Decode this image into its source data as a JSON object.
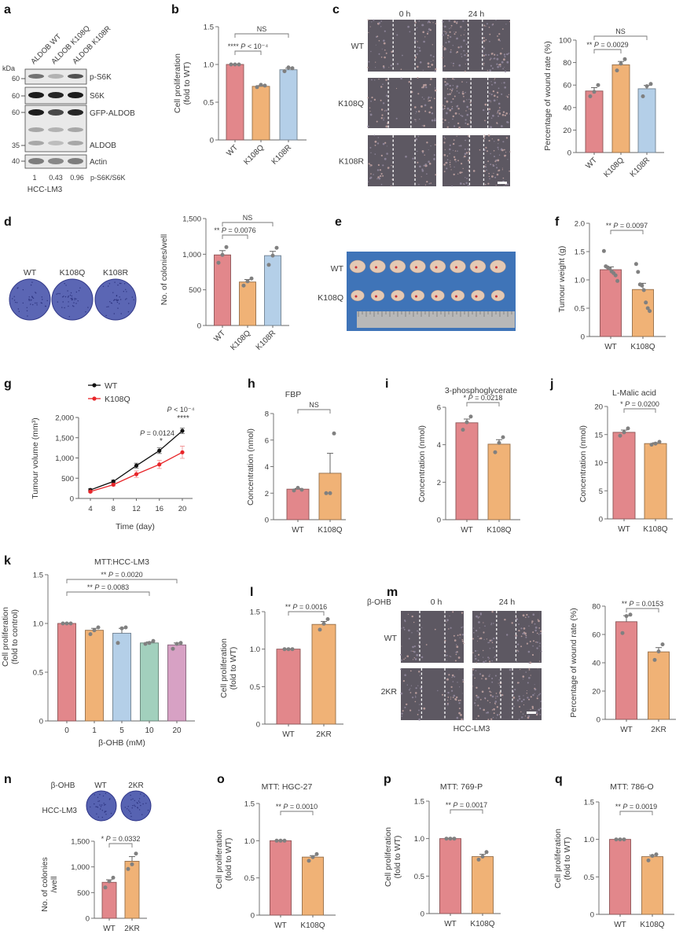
{
  "panel_labels": [
    "a",
    "b",
    "c",
    "d",
    "e",
    "f",
    "g",
    "h",
    "i",
    "j",
    "k",
    "l",
    "m",
    "n",
    "o",
    "p",
    "q"
  ],
  "colors": {
    "WT": "#e2878b",
    "K108Q": "#f0b276",
    "K108R": "#b4cfe8",
    "2KR": "#f0b276",
    "dose_10": "#a2d0bd",
    "dose_20": "#d7a1c4",
    "line_WT": "#111111",
    "line_K108Q": "#e8262a",
    "point": "#808080"
  },
  "blot": {
    "lanes": [
      "ALDOB WT",
      "ALDOB K108Q",
      "ALDOB K108R"
    ],
    "kda_label": "kDa",
    "markers": [
      "60",
      "60",
      "60",
      "35",
      "40"
    ],
    "bands": [
      "p-S6K",
      "S6K",
      "GFP-ALDOB",
      "ALDOB",
      "Actin"
    ],
    "ratio_values": [
      "1",
      "0.43",
      "0.96"
    ],
    "ratio_label": "p-S6K/S6K",
    "cell_line": "HCC-LM3"
  },
  "wound_c": {
    "time_labels": [
      "0 h",
      "24 h"
    ],
    "rows": [
      "WT",
      "K108Q",
      "K108R"
    ]
  },
  "colony_d": {
    "labels": [
      "WT",
      "K108Q",
      "K108R"
    ]
  },
  "tumour_e": {
    "rows": [
      "WT",
      "K108Q"
    ]
  },
  "wound_m": {
    "treatment": "β-OHB",
    "time_labels": [
      "0 h",
      "24 h"
    ],
    "rows": [
      "WT",
      "2KR"
    ],
    "cell_line": "HCC-LM3"
  },
  "colony_n": {
    "treatment": "β-OHB",
    "cols": [
      "WT",
      "2KR"
    ],
    "cell_line": "HCC-LM3"
  },
  "chart_data": [
    {
      "id": "b",
      "type": "bar",
      "title": "",
      "ylabel": [
        "Cell proliferation",
        "(fold to WT)"
      ],
      "ylim": [
        0,
        1.5
      ],
      "yticks": [
        0,
        0.5,
        1.0,
        1.5
      ],
      "ytick_labels": [
        "0",
        "0.5",
        "1.0",
        "1.5"
      ],
      "categories": [
        "WT",
        "K108Q",
        "K108R"
      ],
      "values": [
        1.0,
        0.71,
        0.93
      ],
      "errors": [
        0.005,
        0.01,
        0.02
      ],
      "points": [
        [
          1.0,
          1.0,
          1.0
        ],
        [
          0.7,
          0.73,
          0.72
        ],
        [
          0.91,
          0.96,
          0.95
        ]
      ],
      "colors": [
        "WT",
        "K108Q",
        "K108R"
      ],
      "comparisons": [
        {
          "groups": [
            0,
            2
          ],
          "label": "NS"
        },
        {
          "groups": [
            0,
            1
          ],
          "label": "**** P < 10⁻⁴"
        }
      ]
    },
    {
      "id": "c",
      "type": "bar",
      "title": "",
      "ylabel": [
        "Percentage of wound rate (%)"
      ],
      "ylim": [
        0,
        100
      ],
      "yticks": [
        0,
        20,
        40,
        60,
        80,
        100
      ],
      "ytick_labels": [
        "0",
        "20",
        "40",
        "60",
        "80",
        "100"
      ],
      "categories": [
        "WT",
        "K108Q",
        "K108R"
      ],
      "values": [
        54.7,
        78,
        56.7
      ],
      "errors": [
        3,
        3,
        3
      ],
      "points": [
        [
          50,
          54,
          60
        ],
        [
          73,
          79,
          83
        ],
        [
          50,
          59,
          61
        ]
      ],
      "colors": [
        "WT",
        "K108Q",
        "K108R"
      ],
      "comparisons": [
        {
          "groups": [
            0,
            2
          ],
          "label": "NS"
        },
        {
          "groups": [
            0,
            1
          ],
          "label": "** P = 0.0029"
        }
      ]
    },
    {
      "id": "d",
      "type": "bar",
      "title": "",
      "ylabel": [
        "No. of colonies/well"
      ],
      "ylim": [
        0,
        1500
      ],
      "yticks": [
        0,
        500,
        1000,
        1500
      ],
      "ytick_labels": [
        "0",
        "500",
        "1,000",
        "1,500"
      ],
      "categories": [
        "WT",
        "K108Q",
        "K108R"
      ],
      "values": [
        990,
        610,
        980
      ],
      "errors": [
        60,
        35,
        60
      ],
      "points": [
        [
          880,
          990,
          1100
        ],
        [
          560,
          620,
          660
        ],
        [
          850,
          980,
          1090
        ]
      ],
      "colors": [
        "WT",
        "K108Q",
        "K108R"
      ],
      "comparisons": [
        {
          "groups": [
            0,
            2
          ],
          "label": "NS"
        },
        {
          "groups": [
            0,
            1
          ],
          "label": "** P = 0.0076"
        }
      ]
    },
    {
      "id": "f",
      "type": "bar",
      "title": "",
      "ylabel": [
        "Tumour weight (g)"
      ],
      "ylim": [
        0,
        2.0
      ],
      "yticks": [
        0,
        0.5,
        1.0,
        1.5,
        2.0
      ],
      "ytick_labels": [
        "0",
        "0.5",
        "1.0",
        "1.5",
        "2.0"
      ],
      "categories": [
        "WT",
        "K108Q"
      ],
      "values": [
        1.18,
        0.83
      ],
      "errors": [
        0.05,
        0.11
      ],
      "points": [
        [
          1.51,
          1.24,
          1.22,
          1.2,
          1.15,
          1.12,
          1.08,
          0.98
        ],
        [
          1.28,
          1.14,
          0.92,
          0.9,
          0.82,
          0.6,
          0.5,
          0.45
        ]
      ],
      "colors": [
        "WT",
        "K108Q"
      ],
      "comparisons": [
        {
          "groups": [
            0,
            1
          ],
          "label": "** P = 0.0097"
        }
      ]
    },
    {
      "id": "g",
      "type": "line",
      "title": "",
      "xlabel": "Time (day)",
      "ylabel": [
        "Tumour volume (mm³)"
      ],
      "ylim": [
        0,
        2000
      ],
      "xlim": [
        4,
        20
      ],
      "x": [
        4,
        8,
        12,
        16,
        20
      ],
      "xtick_labels": [
        "4",
        "8",
        "12",
        "16",
        "20"
      ],
      "yticks": [
        0,
        500,
        1000,
        1500,
        2000
      ],
      "ytick_labels": [
        "0",
        "500",
        "1,000",
        "1,500",
        "2,000"
      ],
      "series": [
        {
          "name": "WT",
          "values": [
            210,
            420,
            810,
            1180,
            1670
          ],
          "errors": [
            30,
            30,
            60,
            70,
            70
          ],
          "color": "line_WT"
        },
        {
          "name": "K108Q",
          "values": [
            170,
            340,
            600,
            840,
            1140
          ],
          "errors": [
            25,
            30,
            80,
            100,
            150
          ],
          "color": "line_K108Q"
        }
      ],
      "legend": "top-left",
      "annotations": [
        {
          "x": 16,
          "label": "P = 0.0124",
          "stars": "*"
        },
        {
          "x": 20,
          "label": "P < 10⁻⁴",
          "stars": "****"
        }
      ]
    },
    {
      "id": "h",
      "type": "bar",
      "title": "FBP",
      "ylabel": [
        "Concentration (nmol)"
      ],
      "ylim": [
        0,
        8
      ],
      "yticks": [
        0,
        2,
        4,
        6,
        8
      ],
      "ytick_labels": [
        "0",
        "2",
        "4",
        "6",
        "8"
      ],
      "categories": [
        "WT",
        "K108Q"
      ],
      "values": [
        2.3,
        3.5
      ],
      "errors": [
        0.05,
        1.5
      ],
      "points": [
        [
          2.2,
          2.4,
          2.25
        ],
        [
          2.0,
          2.0,
          6.5
        ]
      ],
      "colors": [
        "WT",
        "K108Q"
      ],
      "comparisons": [
        {
          "groups": [
            0,
            1
          ],
          "label": "NS"
        }
      ]
    },
    {
      "id": "i",
      "type": "bar",
      "title": "3-phosphoglycerate",
      "ylabel": [
        "Concentration (nmol)"
      ],
      "ylim": [
        0,
        6
      ],
      "yticks": [
        0,
        2,
        4,
        6
      ],
      "ytick_labels": [
        "0",
        "2",
        "4",
        "6"
      ],
      "categories": [
        "WT",
        "K108Q"
      ],
      "values": [
        5.17,
        4.03
      ],
      "errors": [
        0.2,
        0.24
      ],
      "points": [
        [
          4.8,
          5.2,
          5.5
        ],
        [
          3.6,
          4.1,
          4.4
        ]
      ],
      "colors": [
        "WT",
        "K108Q"
      ],
      "comparisons": [
        {
          "groups": [
            0,
            1
          ],
          "label": "* P = 0.0218"
        }
      ]
    },
    {
      "id": "j",
      "type": "bar",
      "title": "L-Malic acid",
      "ylabel": [
        "Concentration (nmol)"
      ],
      "ylim": [
        0,
        20
      ],
      "yticks": [
        0,
        5,
        10,
        15,
        20
      ],
      "ytick_labels": [
        "0",
        "5",
        "10",
        "15",
        "20"
      ],
      "categories": [
        "WT",
        "K108Q"
      ],
      "values": [
        15.4,
        13.4
      ],
      "errors": [
        0.4,
        0.15
      ],
      "points": [
        [
          14.8,
          15.4,
          16.1
        ],
        [
          13.2,
          13.4,
          13.7
        ]
      ],
      "colors": [
        "WT",
        "K108Q"
      ],
      "comparisons": [
        {
          "groups": [
            0,
            1
          ],
          "label": "* P = 0.0200"
        }
      ]
    },
    {
      "id": "k",
      "type": "bar",
      "title": "MTT:HCC-LM3",
      "xlabel": "β-OHB (mM)",
      "ylabel": [
        "Cell proliferation",
        "(fold to control)"
      ],
      "ylim": [
        0,
        1.5
      ],
      "yticks": [
        0,
        0.5,
        1.0,
        1.5
      ],
      "ytick_labels": [
        "0",
        "0.5",
        "1.0",
        "1.5"
      ],
      "categories": [
        "0",
        "1",
        "5",
        "10",
        "20"
      ],
      "values": [
        1.0,
        0.93,
        0.9,
        0.8,
        0.78
      ],
      "errors": [
        0.005,
        0.02,
        0.05,
        0.01,
        0.02
      ],
      "points": [
        [
          1,
          1,
          1
        ],
        [
          0.89,
          0.93,
          0.96
        ],
        [
          0.8,
          0.95,
          0.96
        ],
        [
          0.79,
          0.8,
          0.82
        ],
        [
          0.74,
          0.79,
          0.8
        ]
      ],
      "colors": [
        "WT",
        "K108Q",
        "K108R",
        "dose_10",
        "dose_20"
      ],
      "comparisons": [
        {
          "groups": [
            0,
            4
          ],
          "label": "** P = 0.0020"
        },
        {
          "groups": [
            0,
            3
          ],
          "label": "** P = 0.0083"
        }
      ]
    },
    {
      "id": "l",
      "type": "bar",
      "title": "",
      "ylabel": [
        "Cell proliferation",
        "(fold to WT)"
      ],
      "ylim": [
        0,
        1.5
      ],
      "yticks": [
        0,
        0.5,
        1.0,
        1.5
      ],
      "ytick_labels": [
        "0",
        "0.5",
        "1.0",
        "1.5"
      ],
      "categories": [
        "WT",
        "2KR"
      ],
      "values": [
        1.0,
        1.33
      ],
      "errors": [
        0.005,
        0.04
      ],
      "points": [
        [
          1,
          1,
          1
        ],
        [
          1.26,
          1.34,
          1.4
        ]
      ],
      "colors": [
        "WT",
        "2KR"
      ],
      "comparisons": [
        {
          "groups": [
            0,
            1
          ],
          "label": "** P = 0.0016"
        }
      ]
    },
    {
      "id": "m",
      "type": "bar",
      "title": "",
      "ylabel": [
        "Percentage of wound rate (%)"
      ],
      "ylim": [
        0,
        80
      ],
      "yticks": [
        0,
        20,
        40,
        60,
        80
      ],
      "ytick_labels": [
        "0",
        "20",
        "40",
        "60",
        "80"
      ],
      "categories": [
        "WT",
        "2KR"
      ],
      "values": [
        69,
        47.7
      ],
      "errors": [
        4.3,
        3
      ],
      "points": [
        [
          61,
          73,
          74
        ],
        [
          42,
          48,
          53
        ]
      ],
      "colors": [
        "WT",
        "2KR"
      ],
      "comparisons": [
        {
          "groups": [
            0,
            1
          ],
          "label": "** P = 0.0153"
        }
      ]
    },
    {
      "id": "n",
      "type": "bar",
      "title": "",
      "ylabel": [
        "No. of colonies",
        "/well"
      ],
      "ylim": [
        0,
        1500
      ],
      "yticks": [
        0,
        500,
        1000,
        1500
      ],
      "ytick_labels": [
        "0",
        "500",
        "1,000",
        "1,500"
      ],
      "categories": [
        "WT",
        "2KR"
      ],
      "values": [
        700,
        1110
      ],
      "errors": [
        50,
        90
      ],
      "points": [
        [
          600,
          720,
          790
        ],
        [
          960,
          1050,
          1260
        ]
      ],
      "colors": [
        "WT",
        "2KR"
      ],
      "comparisons": [
        {
          "groups": [
            0,
            1
          ],
          "label": "* P = 0.0332"
        }
      ]
    },
    {
      "id": "o",
      "type": "bar",
      "title": "MTT: HGC-27",
      "ylabel": [
        "Cell proliferation",
        "(fold to WT)"
      ],
      "ylim": [
        0,
        1.5
      ],
      "yticks": [
        0,
        0.5,
        1.0,
        1.5
      ],
      "ytick_labels": [
        "0",
        "0.5",
        "1.0",
        "1.5"
      ],
      "categories": [
        "WT",
        "K108Q"
      ],
      "values": [
        1.0,
        0.78
      ],
      "errors": [
        0.005,
        0.02
      ],
      "points": [
        [
          1,
          1,
          1
        ],
        [
          0.73,
          0.78,
          0.82
        ]
      ],
      "colors": [
        "WT",
        "K108Q"
      ],
      "comparisons": [
        {
          "groups": [
            0,
            1
          ],
          "label": "** P = 0.0010"
        }
      ]
    },
    {
      "id": "p",
      "type": "bar",
      "title": "MTT: 769-P",
      "ylabel": [
        "Cell proliferation",
        "(fold to WT)"
      ],
      "ylim": [
        0,
        1.5
      ],
      "yticks": [
        0,
        0.5,
        1.0,
        1.5
      ],
      "ytick_labels": [
        "0",
        "0.5",
        "1.0",
        "1.5"
      ],
      "categories": [
        "WT",
        "K108Q"
      ],
      "values": [
        1.0,
        0.76
      ],
      "errors": [
        0.005,
        0.03
      ],
      "points": [
        [
          1,
          1,
          1
        ],
        [
          0.72,
          0.76,
          0.82
        ]
      ],
      "colors": [
        "WT",
        "K108Q"
      ],
      "comparisons": [
        {
          "groups": [
            0,
            1
          ],
          "label": "** P = 0.0017"
        }
      ]
    },
    {
      "id": "q",
      "type": "bar",
      "title": "MTT: 786-O",
      "ylabel": [
        "Cell proliferation",
        "(fold to WT)"
      ],
      "ylim": [
        0,
        1.5
      ],
      "yticks": [
        0,
        0.5,
        1.0,
        1.5
      ],
      "ytick_labels": [
        "0",
        "0.5",
        "1.0",
        "1.5"
      ],
      "categories": [
        "WT",
        "K108Q"
      ],
      "values": [
        1.0,
        0.77
      ],
      "errors": [
        0.005,
        0.02
      ],
      "points": [
        [
          1,
          1,
          1
        ],
        [
          0.72,
          0.78,
          0.8
        ]
      ],
      "colors": [
        "WT",
        "K108Q"
      ],
      "comparisons": [
        {
          "groups": [
            0,
            1
          ],
          "label": "** P = 0.0019"
        }
      ]
    }
  ]
}
